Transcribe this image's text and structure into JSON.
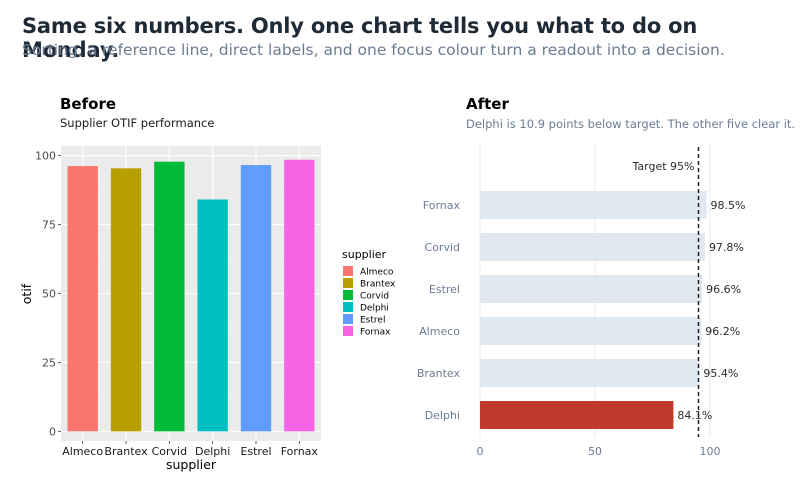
{
  "headline": "Same six numbers. Only one chart tells you what to do on Monday.",
  "subheadline": "Sorting, a reference line, direct labels, and one focus colour turn a readout into a decision.",
  "chart_data": [
    {
      "type": "bar",
      "panel_title": "Before",
      "title": "Supplier OTIF performance",
      "xlabel": "supplier",
      "ylabel": "otif",
      "categories": [
        "Almeco",
        "Brantex",
        "Corvid",
        "Delphi",
        "Estrel",
        "Fornax"
      ],
      "values": [
        96.2,
        95.4,
        97.8,
        84.1,
        96.6,
        98.5
      ],
      "colors": [
        "#F8766D",
        "#B79F00",
        "#00BA38",
        "#00BFC4",
        "#619CFF",
        "#F564E3"
      ],
      "ylim": [
        0,
        100
      ],
      "yticks": [
        0,
        25,
        50,
        75,
        100
      ],
      "grid": true,
      "legend": {
        "title": "supplier",
        "placement": "right",
        "items": [
          "Almeco",
          "Brantex",
          "Corvid",
          "Delphi",
          "Estrel",
          "Fornax"
        ]
      }
    },
    {
      "type": "bar",
      "orientation": "horizontal",
      "panel_title": "After",
      "title": "Delphi is 10.9 points below target. The other five clear it.",
      "categories": [
        "Fornax",
        "Corvid",
        "Estrel",
        "Almeco",
        "Brantex",
        "Delphi"
      ],
      "values": [
        98.5,
        97.8,
        96.6,
        96.2,
        95.4,
        84.1
      ],
      "value_labels": [
        "98.5%",
        "97.8%",
        "96.6%",
        "96.2%",
        "95.4%",
        "84.1%"
      ],
      "focus_category": "Delphi",
      "focus_color": "#C0392B",
      "base_color": "#E1E8F0",
      "reference_line": {
        "value": 95,
        "label": "Target 95%"
      },
      "xlim": [
        0,
        100
      ],
      "xticks": [
        0,
        50,
        100
      ],
      "grid": true
    }
  ]
}
